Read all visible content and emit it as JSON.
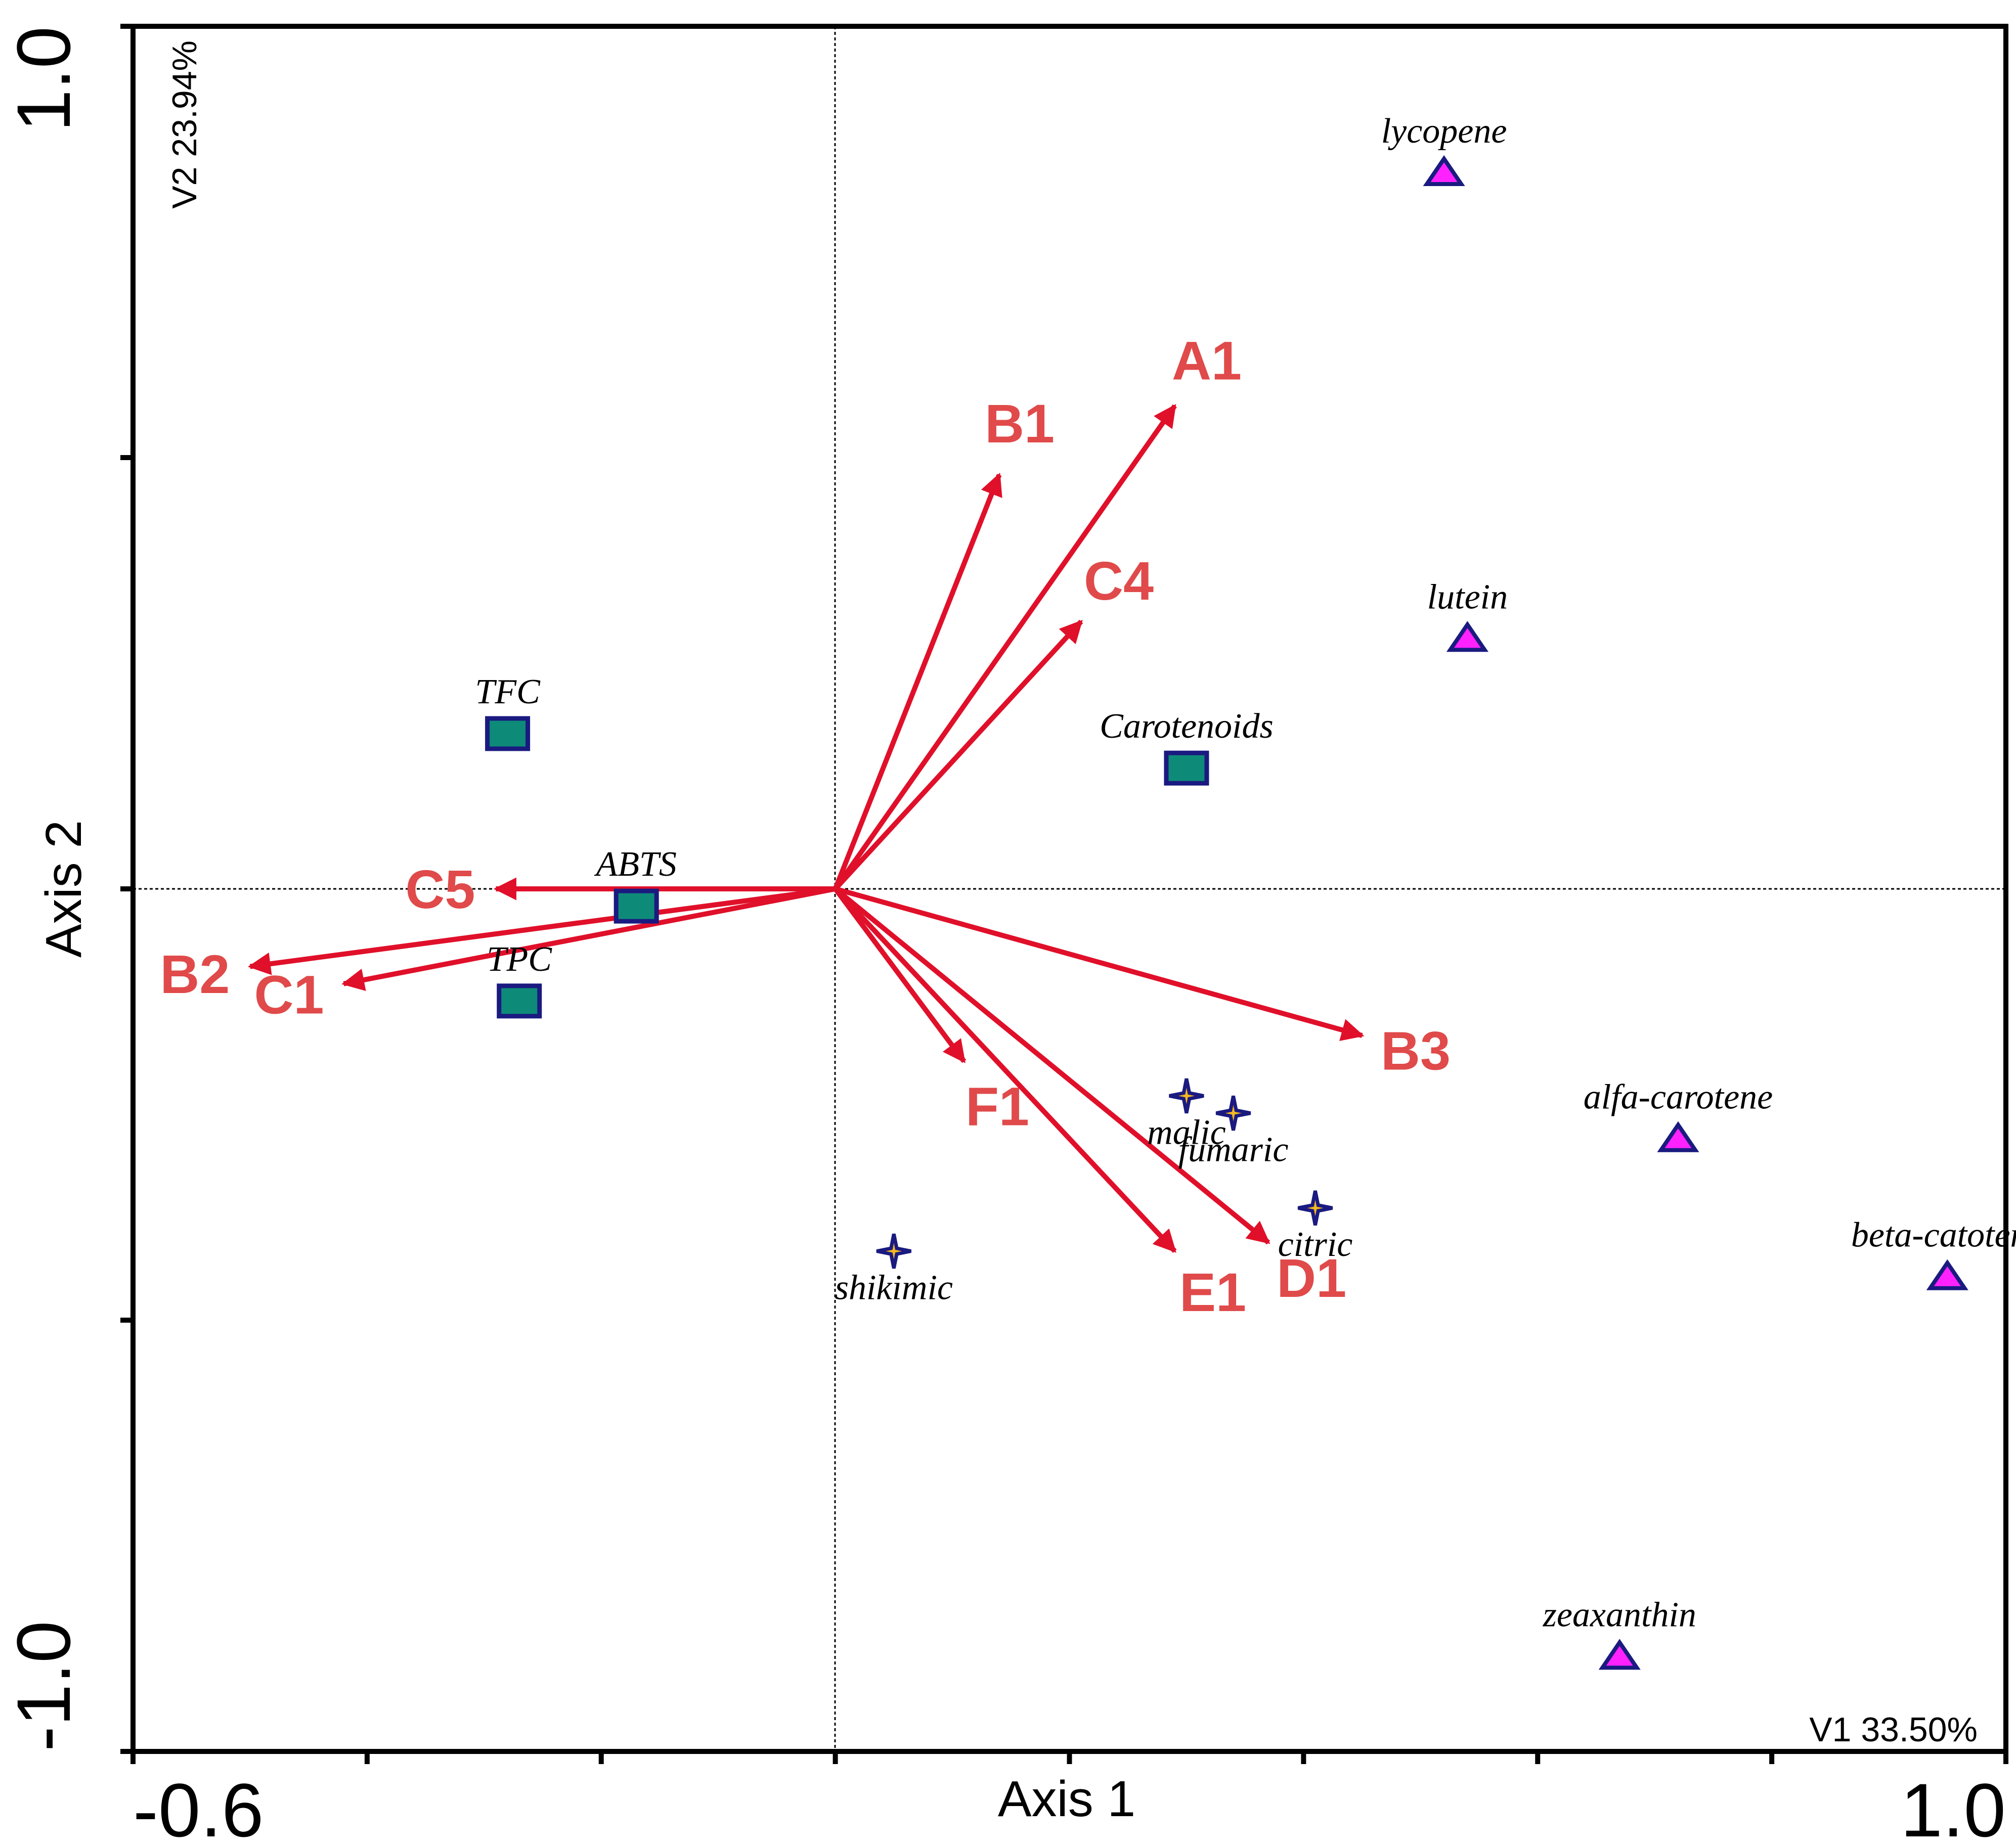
{
  "chart_data": {
    "type": "scatter",
    "title": "",
    "xlabel": "Axis 1",
    "ylabel": "Axis 2",
    "xlim": [
      -0.6,
      1.0
    ],
    "ylim": [
      -1.0,
      1.0
    ],
    "x_tick_labels": [
      "-0.6",
      "1.0"
    ],
    "y_tick_labels": [
      "1.0",
      "-1.0"
    ],
    "x_variance_label": "V1 33.50%",
    "y_variance_label": "V2 23.94%",
    "colors": {
      "arrow": "#e0102a",
      "arrow_label": "#e04a4a",
      "square_fill": "#0e8a78",
      "outline": "#1a1a80",
      "triangle_fill": "#ff22ff",
      "star_fill": "#f5b820"
    },
    "arrows": [
      {
        "label": "A1",
        "x": 0.29,
        "y": 0.56
      },
      {
        "label": "B1",
        "x": 0.14,
        "y": 0.48
      },
      {
        "label": "C4",
        "x": 0.21,
        "y": 0.31
      },
      {
        "label": "C5",
        "x": -0.29,
        "y": 0.0
      },
      {
        "label": "B2",
        "x": -0.5,
        "y": -0.09
      },
      {
        "label": "C1",
        "x": -0.42,
        "y": -0.11
      },
      {
        "label": "B3",
        "x": 0.45,
        "y": -0.17
      },
      {
        "label": "F1",
        "x": 0.11,
        "y": -0.2
      },
      {
        "label": "E1",
        "x": 0.29,
        "y": -0.42
      },
      {
        "label": "D1",
        "x": 0.37,
        "y": -0.41
      }
    ],
    "series": [
      {
        "marker": "square",
        "points": [
          {
            "label": "TFC",
            "x": -0.28,
            "y": 0.18
          },
          {
            "label": "Carotenoids",
            "x": 0.3,
            "y": 0.14
          },
          {
            "label": "ABTS",
            "x": -0.17,
            "y": -0.02
          },
          {
            "label": "TPC",
            "x": -0.27,
            "y": -0.13
          }
        ]
      },
      {
        "marker": "triangle",
        "points": [
          {
            "label": "lycopene",
            "x": 0.52,
            "y": 0.83
          },
          {
            "label": "lutein",
            "x": 0.54,
            "y": 0.29
          },
          {
            "label": "alfa-carotene",
            "x": 0.72,
            "y": -0.29
          },
          {
            "label": "beta-catotene",
            "x": 0.95,
            "y": -0.45
          },
          {
            "label": "zeaxanthin",
            "x": 0.67,
            "y": -0.89
          }
        ]
      },
      {
        "marker": "star",
        "points": [
          {
            "label": "malic",
            "x": 0.3,
            "y": -0.24
          },
          {
            "label": "fumaric",
            "x": 0.34,
            "y": -0.26
          },
          {
            "label": "citric",
            "x": 0.41,
            "y": -0.37
          },
          {
            "label": "shikimic",
            "x": 0.05,
            "y": -0.42
          }
        ]
      }
    ]
  }
}
